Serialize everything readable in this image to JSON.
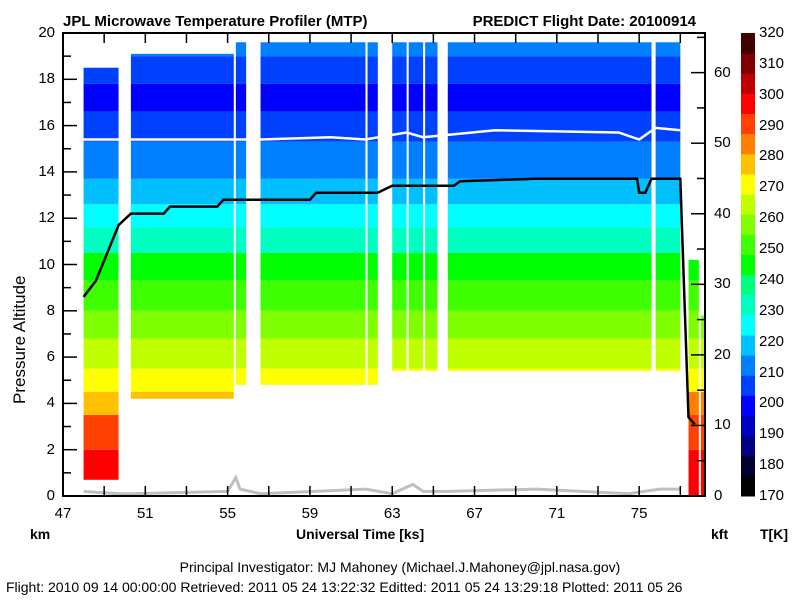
{
  "chart_data": {
    "type": "heatmap",
    "title": "JPL Microwave Temperature Profiler (MTP)",
    "subtitle": "PREDICT  Flight Date: 20100914",
    "xlabel": "Universal Time [ks]",
    "ylabel": "Pressure Altitude",
    "left_unit": "km",
    "right_unit": "kft",
    "colorbar_unit": "T[K]",
    "xlim": [
      47,
      78.2
    ],
    "ylim": [
      0,
      20
    ],
    "x_ticks": [
      47,
      51,
      55,
      59,
      63,
      67,
      71,
      75
    ],
    "x_minor_step": 2,
    "y_ticks": [
      0,
      2,
      4,
      6,
      8,
      10,
      12,
      14,
      16,
      18,
      20
    ],
    "y2_ticks": [
      0,
      10,
      20,
      30,
      40,
      50,
      60
    ],
    "colorbar": {
      "ticks": [
        170,
        180,
        190,
        200,
        210,
        220,
        230,
        240,
        250,
        260,
        270,
        280,
        290,
        300,
        310,
        320
      ],
      "colors": [
        "#000000",
        "#000033",
        "#000080",
        "#0000c0",
        "#0000ff",
        "#0040ff",
        "#0080ff",
        "#00c0ff",
        "#00ffff",
        "#00ffc0",
        "#00ff80",
        "#00ff00",
        "#40ff00",
        "#80ff00",
        "#c0ff00",
        "#ffff00",
        "#ffc000",
        "#ff8000",
        "#ff4000",
        "#ff0000",
        "#c00000",
        "#800000",
        "#400000"
      ]
    },
    "segments": [
      {
        "t0": 48.0,
        "t1": 49.7,
        "bottom": 0.7,
        "top": 18.5,
        "kind": "ascent"
      },
      {
        "t0": 50.3,
        "t1": 55.3,
        "bottom": 4.2,
        "top": 19.1
      },
      {
        "t0": 55.4,
        "t1": 55.9,
        "bottom": 4.8,
        "top": 19.6
      },
      {
        "t0": 56.6,
        "t1": 61.7,
        "bottom": 4.8,
        "top": 19.6
      },
      {
        "t0": 61.8,
        "t1": 62.3,
        "bottom": 4.8,
        "top": 19.6
      },
      {
        "t0": 63.0,
        "t1": 63.7,
        "bottom": 5.4,
        "top": 19.6
      },
      {
        "t0": 63.8,
        "t1": 64.5,
        "bottom": 5.4,
        "top": 19.6
      },
      {
        "t0": 64.6,
        "t1": 65.2,
        "bottom": 5.4,
        "top": 19.6
      },
      {
        "t0": 65.7,
        "t1": 75.6,
        "bottom": 5.4,
        "top": 19.6
      },
      {
        "t0": 75.8,
        "t1": 77.0,
        "bottom": 5.4,
        "top": 19.6
      },
      {
        "t0": 77.4,
        "t1": 77.9,
        "bottom": 0.0,
        "top": 10.2,
        "kind": "descent"
      },
      {
        "t0": 78.0,
        "t1": 78.2,
        "bottom": 0.0,
        "top": 7.8,
        "kind": "descent"
      }
    ],
    "isotherm_bands": [
      {
        "alt": 0.0,
        "T": 295
      },
      {
        "alt": 2.0,
        "T": 288
      },
      {
        "alt": 3.5,
        "T": 280
      },
      {
        "alt": 4.5,
        "T": 272
      },
      {
        "alt": 5.5,
        "T": 265
      },
      {
        "alt": 6.8,
        "T": 258
      },
      {
        "alt": 8.0,
        "T": 250
      },
      {
        "alt": 9.3,
        "T": 242
      },
      {
        "alt": 10.5,
        "T": 235
      },
      {
        "alt": 11.6,
        "T": 225
      },
      {
        "alt": 12.6,
        "T": 218
      },
      {
        "alt": 13.7,
        "T": 210
      },
      {
        "alt": 15.3,
        "T": 203
      },
      {
        "alt": 16.6,
        "T": 200
      },
      {
        "alt": 17.8,
        "T": 205
      },
      {
        "alt": 19.0,
        "T": 210
      }
    ],
    "series": [
      {
        "name": "aircraft altitude",
        "color": "#000000",
        "points": [
          [
            48.0,
            8.6
          ],
          [
            48.6,
            9.3
          ],
          [
            49.7,
            11.7
          ],
          [
            50.3,
            12.2
          ],
          [
            51.9,
            12.2
          ],
          [
            52.2,
            12.5
          ],
          [
            54.5,
            12.5
          ],
          [
            54.8,
            12.8
          ],
          [
            59.0,
            12.8
          ],
          [
            59.3,
            13.1
          ],
          [
            62.3,
            13.1
          ],
          [
            63.0,
            13.4
          ],
          [
            66.0,
            13.4
          ],
          [
            66.3,
            13.6
          ],
          [
            70.0,
            13.7
          ],
          [
            74.9,
            13.7
          ],
          [
            75.0,
            13.1
          ],
          [
            75.3,
            13.1
          ],
          [
            75.6,
            13.7
          ],
          [
            77.0,
            13.7
          ],
          [
            77.4,
            3.4
          ],
          [
            77.7,
            3.1
          ]
        ]
      },
      {
        "name": "tropopause",
        "color": "#ffffff",
        "points": [
          [
            48.0,
            15.4
          ],
          [
            49.7,
            15.4
          ],
          [
            50.3,
            15.4
          ],
          [
            55.0,
            15.4
          ],
          [
            56.6,
            15.4
          ],
          [
            60.0,
            15.5
          ],
          [
            61.7,
            15.4
          ],
          [
            63.0,
            15.6
          ],
          [
            63.7,
            15.7
          ],
          [
            64.5,
            15.5
          ],
          [
            65.7,
            15.6
          ],
          [
            68.0,
            15.8
          ],
          [
            74.0,
            15.7
          ],
          [
            75.0,
            15.4
          ],
          [
            75.8,
            15.9
          ],
          [
            77.0,
            15.8
          ]
        ]
      },
      {
        "name": "surface",
        "color": "#bfbfbf",
        "points": [
          [
            48.0,
            0.2
          ],
          [
            49.7,
            0.1
          ],
          [
            50.3,
            0.1
          ],
          [
            55.0,
            0.2
          ],
          [
            55.4,
            0.8
          ],
          [
            55.6,
            0.3
          ],
          [
            56.6,
            0.1
          ],
          [
            61.7,
            0.3
          ],
          [
            63.0,
            0.1
          ],
          [
            64.0,
            0.5
          ],
          [
            64.5,
            0.2
          ],
          [
            65.7,
            0.2
          ],
          [
            70.0,
            0.3
          ],
          [
            74.5,
            0.1
          ],
          [
            76.0,
            0.3
          ],
          [
            77.0,
            0.3
          ]
        ]
      }
    ]
  },
  "footer": {
    "pi": "Principal Investigator: MJ Mahoney (Michael.J.Mahoney@jpl.nasa.gov)",
    "dates": "Flight: 2010 09 14 00:00:00   Retrieved: 2011 05 24 13:22:32   Editted: 2011 05 24 13:29:18  Plotted: 2011 05 26"
  }
}
